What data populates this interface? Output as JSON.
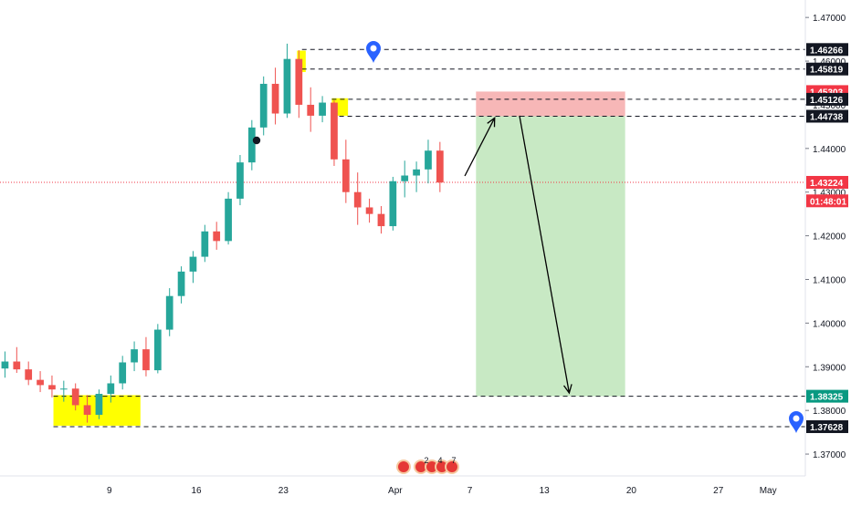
{
  "chart_data": {
    "type": "candlestick",
    "price_axis": {
      "min": 1.365,
      "max": 1.474,
      "ticks": [
        "1.47000",
        "1.46000",
        "1.45000",
        "1.44000",
        "1.43000",
        "1.42000",
        "1.41000",
        "1.40000",
        "1.39000",
        "1.38000",
        "1.37000"
      ],
      "tick_values": [
        1.47,
        1.46,
        1.45,
        1.44,
        1.43,
        1.42,
        1.41,
        1.4,
        1.39,
        1.38,
        1.37
      ]
    },
    "time_axis": {
      "labels": [
        "9",
        "16",
        "23",
        "Apr",
        "7",
        "13",
        "20",
        "27",
        "May"
      ],
      "label_days": [
        9,
        16,
        23,
        32,
        38,
        44,
        51,
        58,
        62
      ]
    },
    "level_labels": [
      {
        "text": "1.46266",
        "value": 1.46266,
        "bg": "#131722",
        "fg": "#ffffff"
      },
      {
        "text": "1.45819",
        "value": 1.45819,
        "bg": "#131722",
        "fg": "#ffffff"
      },
      {
        "text": "1.45303",
        "value": 1.45303,
        "bg": "#f23645",
        "fg": "#ffffff"
      },
      {
        "text": "1.45126",
        "value": 1.45126,
        "bg": "#131722",
        "fg": "#ffffff"
      },
      {
        "text": "1.44738",
        "value": 1.44738,
        "bg": "#131722",
        "fg": "#ffffff"
      },
      {
        "text": "1.43224",
        "value": 1.43224,
        "bg": "#f23645",
        "fg": "#ffffff"
      },
      {
        "text": "01:48:01",
        "value": 1.428,
        "bg": "#f23645",
        "fg": "#ffffff"
      },
      {
        "text": "1.38325",
        "value": 1.38325,
        "bg": "#089981",
        "fg": "#ffffff"
      },
      {
        "text": "1.37628",
        "value": 1.37628,
        "bg": "#131722",
        "fg": "#ffffff"
      }
    ],
    "dashed_levels": [
      1.46266,
      1.45819,
      1.45126,
      1.44738,
      1.38325,
      1.37628
    ],
    "current_price": 1.43224,
    "position": {
      "entry": 1.44738,
      "stop": 1.45303,
      "target": 1.38325,
      "start_day": 38.5,
      "end_day": 50.5,
      "stop_color": "#f7b7b7",
      "target_color": "#c8e9c4"
    },
    "highlight_boxes": [
      {
        "from_day": 4.5,
        "to_day": 11.5,
        "low": 1.3765,
        "high": 1.3835,
        "color": "#ffff00"
      },
      {
        "from_day": 24.1,
        "to_day": 24.8,
        "low": 1.4575,
        "high": 1.4624,
        "color": "#ffff00"
      },
      {
        "from_day": 26.9,
        "to_day": 28.2,
        "low": 1.4475,
        "high": 1.4515,
        "color": "#ffff00"
      }
    ],
    "arrows": [
      {
        "from_day": 37.6,
        "from_price": 1.4337,
        "to_day": 40.0,
        "to_price": 1.447
      },
      {
        "from_day": 42.0,
        "from_price": 1.4475,
        "to_day": 46.0,
        "to_price": 1.384
      }
    ],
    "up_color": "#26a69a",
    "down_color": "#ef5350",
    "candles": [
      [
        1.3896,
        1.3935,
        1.3875,
        1.3912
      ],
      [
        1.3912,
        1.3945,
        1.3886,
        1.3894
      ],
      [
        1.3894,
        1.3912,
        1.3858,
        1.387
      ],
      [
        1.387,
        1.389,
        1.3842,
        1.3858
      ],
      [
        1.3858,
        1.388,
        1.383,
        1.3848
      ],
      [
        1.3848,
        1.3868,
        1.382,
        1.385
      ],
      [
        1.385,
        1.3862,
        1.38,
        1.3812
      ],
      [
        1.3812,
        1.3835,
        1.3772,
        1.379
      ],
      [
        1.379,
        1.3848,
        1.378,
        1.3838
      ],
      [
        1.3838,
        1.388,
        1.3818,
        1.3862
      ],
      [
        1.3862,
        1.3925,
        1.3848,
        1.391
      ],
      [
        1.391,
        1.3958,
        1.389,
        1.394
      ],
      [
        1.394,
        1.3968,
        1.3878,
        1.3892
      ],
      [
        1.3892,
        1.3998,
        1.3885,
        1.3985
      ],
      [
        1.3985,
        1.408,
        1.397,
        1.4062
      ],
      [
        1.4062,
        1.413,
        1.4045,
        1.4118
      ],
      [
        1.4118,
        1.4165,
        1.4092,
        1.4152
      ],
      [
        1.4152,
        1.4225,
        1.414,
        1.421
      ],
      [
        1.421,
        1.4232,
        1.4168,
        1.4188
      ],
      [
        1.4188,
        1.43,
        1.418,
        1.4285
      ],
      [
        1.4285,
        1.4385,
        1.427,
        1.4368
      ],
      [
        1.4368,
        1.4465,
        1.435,
        1.4448
      ],
      [
        1.4448,
        1.4565,
        1.443,
        1.4548
      ],
      [
        1.4548,
        1.4585,
        1.4455,
        1.448
      ],
      [
        1.448,
        1.464,
        1.447,
        1.4605
      ],
      [
        1.4605,
        1.4625,
        1.447,
        1.45
      ],
      [
        1.45,
        1.454,
        1.4438,
        1.4475
      ],
      [
        1.4475,
        1.452,
        1.446,
        1.4505
      ],
      [
        1.4505,
        1.451,
        1.436,
        1.4375
      ],
      [
        1.4375,
        1.442,
        1.4275,
        1.43
      ],
      [
        1.43,
        1.4345,
        1.4225,
        1.4265
      ],
      [
        1.4265,
        1.4285,
        1.423,
        1.425
      ],
      [
        1.425,
        1.4268,
        1.4205,
        1.4222
      ],
      [
        1.4222,
        1.4335,
        1.4212,
        1.4325
      ],
      [
        1.4325,
        1.4372,
        1.4288,
        1.4338
      ],
      [
        1.4338,
        1.437,
        1.43,
        1.4352
      ],
      [
        1.4352,
        1.442,
        1.432,
        1.4395
      ],
      [
        1.4395,
        1.4415,
        1.43,
        1.4322
      ]
    ]
  }
}
